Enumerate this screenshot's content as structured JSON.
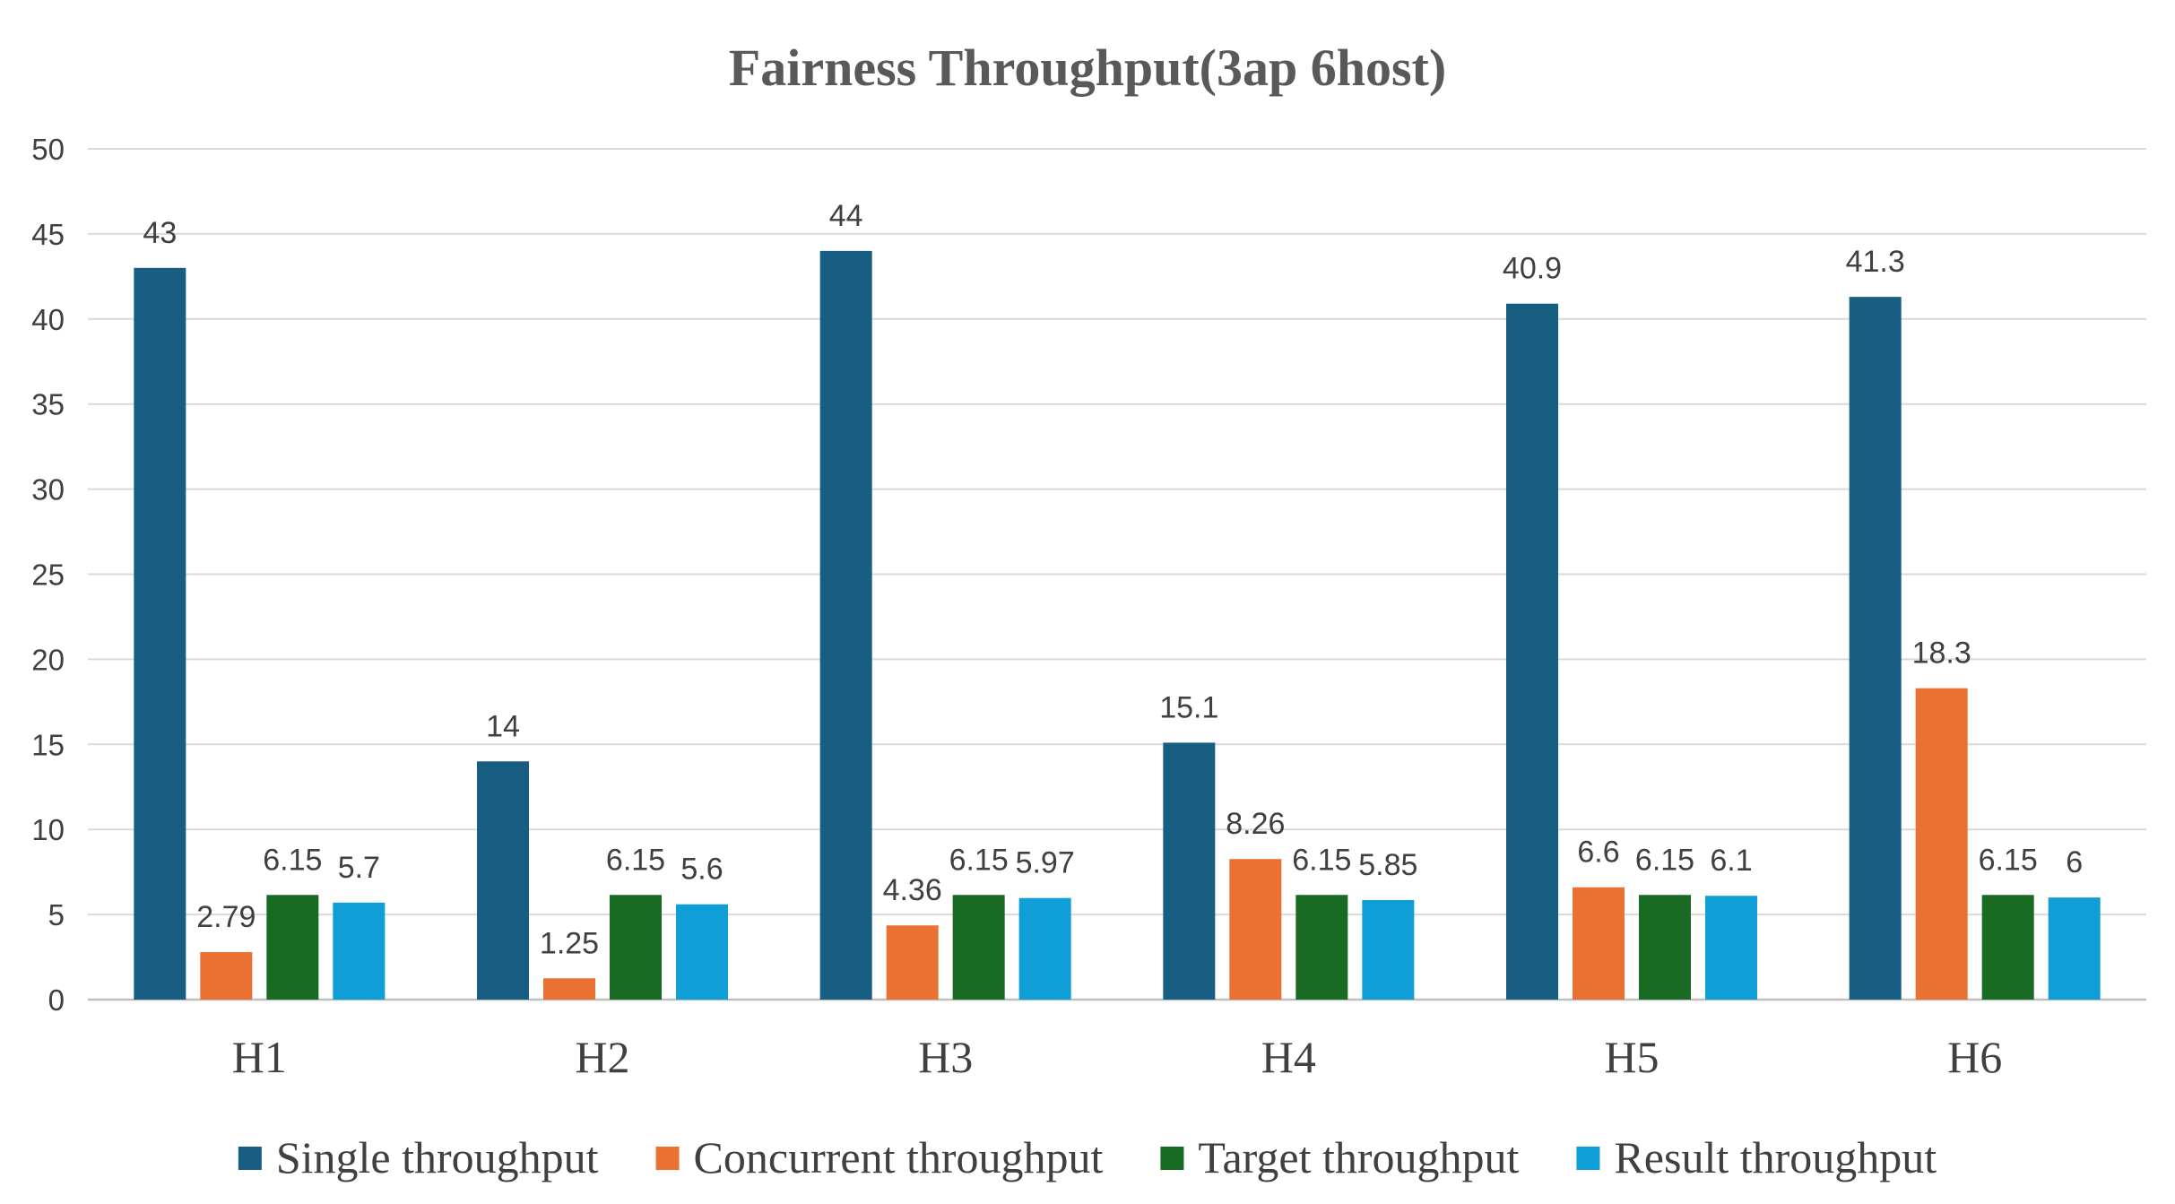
{
  "chart_data": {
    "type": "bar",
    "title": "Fairness Throughput(3ap 6host)",
    "xlabel": "",
    "ylabel": "",
    "categories": [
      "H1",
      "H2",
      "H3",
      "H4",
      "H5",
      "H6"
    ],
    "ylim": [
      0,
      50
    ],
    "yticks": [
      0,
      5,
      10,
      15,
      20,
      25,
      30,
      35,
      40,
      45,
      50
    ],
    "grid": true,
    "legend_position": "bottom",
    "series": [
      {
        "name": "Single throughput",
        "color": "#175E82",
        "values": [
          43,
          14,
          44,
          15.1,
          40.9,
          41.3
        ],
        "labels": [
          "43",
          "14",
          "44",
          "15.1",
          "40.9",
          "41.3"
        ]
      },
      {
        "name": "Concurrent throughput",
        "color": "#E97132",
        "values": [
          2.79,
          1.25,
          4.36,
          8.26,
          6.6,
          18.3
        ],
        "labels": [
          "2.79",
          "1.25",
          "4.36",
          "8.26",
          "6.6",
          "18.3"
        ]
      },
      {
        "name": "Target throughput",
        "color": "#196B24",
        "values": [
          6.15,
          6.15,
          6.15,
          6.15,
          6.15,
          6.15
        ],
        "labels": [
          "6.15",
          "6.15",
          "6.15",
          "6.15",
          "6.15",
          "6.15"
        ]
      },
      {
        "name": "Result throughput",
        "color": "#0F9ED5",
        "values": [
          5.7,
          5.6,
          5.97,
          5.85,
          6.1,
          6
        ],
        "labels": [
          "5.7",
          "5.6",
          "5.97",
          "5.85",
          "6.1",
          "6"
        ]
      }
    ]
  }
}
